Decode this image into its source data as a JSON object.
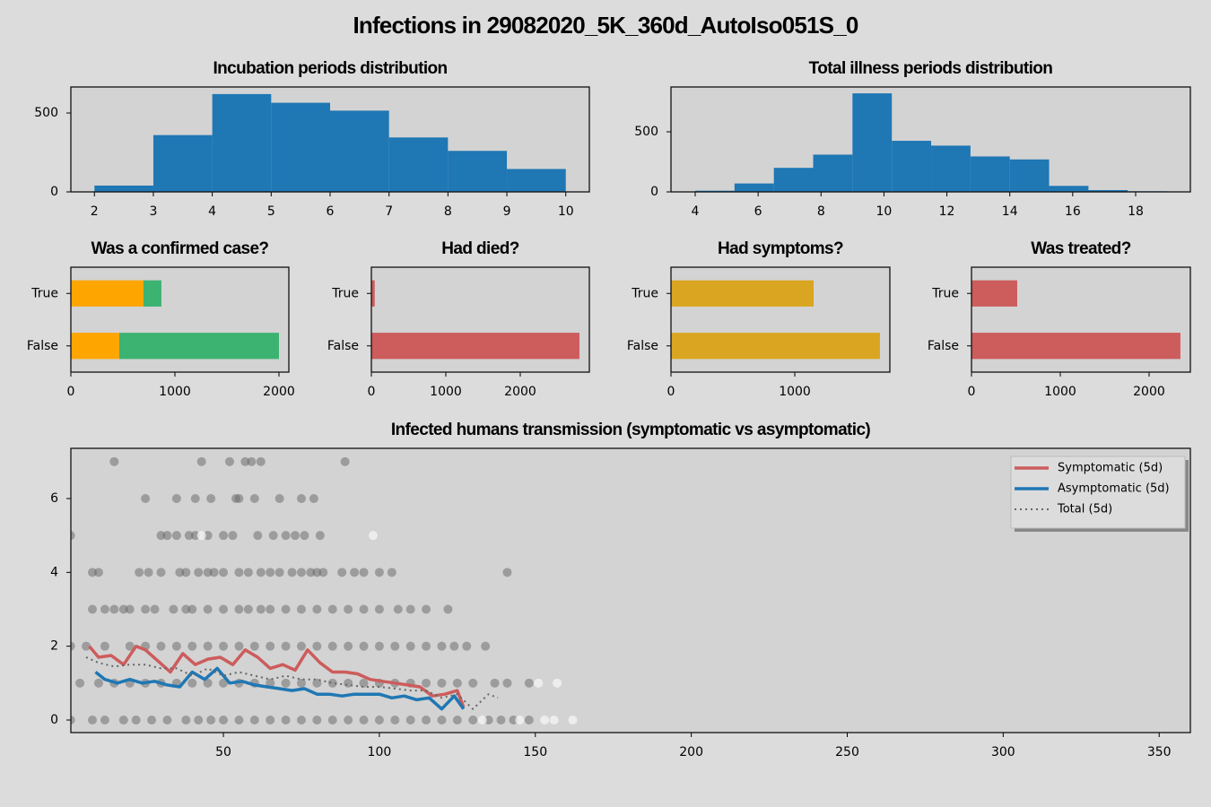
{
  "title": "Infections in 29082020_5K_360d_AutoIso051S_0",
  "chart_data": [
    {
      "type": "histogram",
      "title": "Incubation periods distribution",
      "color": "#1f77b4",
      "bins": [
        2,
        3,
        4,
        5,
        6,
        7,
        8,
        9,
        10
      ],
      "values": [
        40,
        360,
        620,
        565,
        515,
        345,
        260,
        145
      ],
      "xlim": [
        1.6,
        10.4
      ],
      "ylim": [
        0,
        665
      ],
      "xticks": [
        2,
        3,
        4,
        5,
        6,
        7,
        8,
        9,
        10
      ],
      "yticks": [
        0,
        500
      ]
    },
    {
      "type": "histogram",
      "title": "Total illness periods distribution",
      "color": "#1f77b4",
      "bins": [
        4,
        5.25,
        6.5,
        7.75,
        9,
        10.25,
        11.5,
        12.75,
        14,
        15.25,
        16.5,
        17.75,
        19
      ],
      "values": [
        10,
        70,
        200,
        310,
        820,
        425,
        385,
        295,
        270,
        50,
        15,
        5
      ],
      "xlim": [
        3.23,
        19.74
      ],
      "ylim": [
        0,
        873
      ],
      "xticks": [
        4,
        6,
        8,
        10,
        12,
        14,
        16,
        18
      ],
      "yticks": [
        0,
        500
      ]
    },
    {
      "type": "barh",
      "title": "Was a confirmed case?",
      "categories": [
        "False",
        "True"
      ],
      "series": [
        {
          "color": "#ffa500",
          "values": [
            465,
            698
          ]
        },
        {
          "color": "#3cb371",
          "values": [
            1535,
            172
          ]
        }
      ],
      "xlim": [
        0,
        2095
      ],
      "xticks": [
        0,
        1000,
        2000
      ]
    },
    {
      "type": "barh",
      "title": "Had died?",
      "categories": [
        "False",
        "True"
      ],
      "series": [
        {
          "color": "#cd5c5c",
          "values": [
            2795,
            45
          ]
        }
      ],
      "xlim": [
        0,
        2928
      ],
      "xticks": [
        0,
        1000,
        2000
      ]
    },
    {
      "type": "barh",
      "title": "Had symptoms?",
      "categories": [
        "False",
        "True"
      ],
      "series": [
        {
          "color": "#daa520",
          "values": [
            1688,
            1152
          ]
        }
      ],
      "xlim": [
        0,
        1768
      ],
      "xticks": [
        0,
        1000
      ]
    },
    {
      "type": "barh",
      "title": "Was treated?",
      "categories": [
        "False",
        "True"
      ],
      "series": [
        {
          "color": "#cd5c5c",
          "values": [
            2353,
            515
          ]
        }
      ],
      "xlim": [
        0,
        2465
      ],
      "xticks": [
        0,
        1000,
        2000
      ]
    },
    {
      "type": "scatter",
      "title": "Infected humans transmission (symptomatic vs asymptomatic)",
      "xlim": [
        1.1,
        360
      ],
      "ylim": [
        -0.34,
        7.36
      ],
      "xticks": [
        50,
        100,
        150,
        200,
        250,
        300,
        350
      ],
      "yticks": [
        0,
        2,
        4,
        6
      ],
      "legend": "upper right",
      "series": [
        {
          "style": "markers",
          "color": "#666666",
          "x": [
            15,
            43,
            52,
            57,
            59,
            62,
            89,
            25,
            35,
            41,
            46,
            54,
            55,
            60,
            68,
            75,
            79,
            1,
            30,
            32,
            35,
            39,
            41,
            45,
            50,
            53,
            61,
            66,
            70,
            73,
            76,
            81,
            8,
            10,
            23,
            26,
            30,
            36,
            38,
            42,
            45,
            47,
            50,
            55,
            58,
            62,
            65,
            68,
            72,
            75,
            78,
            80,
            82,
            88,
            92,
            95,
            100,
            104,
            141,
            8,
            12,
            15,
            18,
            20,
            25,
            28,
            34,
            38,
            40,
            45,
            50,
            55,
            58,
            62,
            65,
            70,
            75,
            80,
            85,
            90,
            95,
            100,
            106,
            110,
            115,
            122,
            1,
            6,
            12,
            20,
            25,
            30,
            35,
            40,
            45,
            50,
            55,
            60,
            65,
            70,
            75,
            80,
            85,
            90,
            95,
            100,
            105,
            110,
            115,
            120,
            124,
            128,
            134,
            4,
            10,
            15,
            20,
            25,
            30,
            35,
            40,
            45,
            50,
            55,
            60,
            65,
            70,
            75,
            80,
            85,
            90,
            95,
            100,
            105,
            110,
            115,
            120,
            125,
            130,
            137,
            141,
            148,
            1,
            8,
            12,
            18,
            22,
            27,
            32,
            38,
            42,
            46,
            50,
            55,
            60,
            65,
            70,
            75,
            80,
            85,
            90,
            95,
            100,
            105,
            110,
            115,
            120,
            125,
            130,
            135,
            139,
            143,
            148
          ],
          "values": [
            7,
            7,
            7,
            7,
            7,
            7,
            7,
            6,
            6,
            6,
            6,
            6,
            6,
            6,
            6,
            6,
            6,
            5,
            5,
            5,
            5,
            5,
            5,
            5,
            5,
            5,
            5,
            5,
            5,
            5,
            5,
            5,
            4,
            4,
            4,
            4,
            4,
            4,
            4,
            4,
            4,
            4,
            4,
            4,
            4,
            4,
            4,
            4,
            4,
            4,
            4,
            4,
            4,
            4,
            4,
            4,
            4,
            4,
            4,
            3,
            3,
            3,
            3,
            3,
            3,
            3,
            3,
            3,
            3,
            3,
            3,
            3,
            3,
            3,
            3,
            3,
            3,
            3,
            3,
            3,
            3,
            3,
            3,
            3,
            3,
            3,
            2,
            2,
            2,
            2,
            2,
            2,
            2,
            2,
            2,
            2,
            2,
            2,
            2,
            2,
            2,
            2,
            2,
            2,
            2,
            2,
            2,
            2,
            2,
            2,
            2,
            2,
            2,
            1,
            1,
            1,
            1,
            1,
            1,
            1,
            1,
            1,
            1,
            1,
            1,
            1,
            1,
            1,
            1,
            1,
            1,
            1,
            1,
            1,
            1,
            1,
            1,
            1,
            1,
            1,
            1,
            1,
            0,
            0,
            0,
            0,
            0,
            0,
            0,
            0,
            0,
            0,
            0,
            0,
            0,
            0,
            0,
            0,
            0,
            0,
            0,
            0,
            0,
            0,
            0,
            0,
            0,
            0,
            0,
            0,
            0,
            0,
            0
          ]
        },
        {
          "style": "markers",
          "color": "#f5f5f5",
          "x": [
            43,
            98,
            151,
            157,
            133,
            145,
            153,
            156,
            162
          ],
          "values": [
            5,
            5,
            1,
            1,
            0,
            0,
            0,
            0,
            0
          ]
        },
        {
          "style": "solid",
          "name": "Symptomatic (5d)",
          "color": "#cd5c5c",
          "x": [
            7,
            10,
            14,
            18,
            22,
            25,
            29,
            33,
            37,
            41,
            45,
            49,
            53,
            57,
            61,
            65,
            69,
            73,
            77,
            81,
            85,
            89,
            93,
            97,
            101,
            105,
            109,
            113,
            117,
            121,
            125,
            127
          ],
          "values": [
            2.0,
            1.7,
            1.75,
            1.5,
            2.0,
            1.9,
            1.6,
            1.3,
            1.8,
            1.5,
            1.65,
            1.7,
            1.5,
            1.9,
            1.7,
            1.4,
            1.5,
            1.35,
            1.9,
            1.55,
            1.3,
            1.3,
            1.25,
            1.1,
            1.05,
            1.0,
            0.95,
            0.9,
            0.65,
            0.7,
            0.8,
            0.35
          ]
        },
        {
          "style": "solid",
          "name": "Asymptomatic (5d)",
          "color": "#1f77b4",
          "x": [
            9,
            12,
            16,
            20,
            24,
            28,
            32,
            36,
            40,
            44,
            48,
            52,
            56,
            60,
            64,
            68,
            72,
            76,
            80,
            84,
            88,
            92,
            96,
            100,
            104,
            108,
            112,
            116,
            120,
            124,
            127
          ],
          "values": [
            1.3,
            1.1,
            1.0,
            1.1,
            1.0,
            1.05,
            0.95,
            0.9,
            1.3,
            1.1,
            1.4,
            1.0,
            1.05,
            0.95,
            0.9,
            0.85,
            0.8,
            0.85,
            0.7,
            0.7,
            0.65,
            0.7,
            0.7,
            0.7,
            0.6,
            0.65,
            0.55,
            0.6,
            0.3,
            0.65,
            0.3
          ]
        },
        {
          "style": "dotted",
          "name": "Total (5d)",
          "color": "#666666",
          "x": [
            6,
            10,
            15,
            20,
            25,
            30,
            35,
            40,
            45,
            50,
            55,
            60,
            65,
            70,
            75,
            80,
            85,
            90,
            95,
            100,
            105,
            110,
            115,
            120,
            125,
            130,
            135,
            138
          ],
          "values": [
            1.7,
            1.55,
            1.45,
            1.5,
            1.5,
            1.4,
            1.4,
            1.2,
            1.4,
            1.2,
            1.3,
            1.2,
            1.1,
            1.2,
            1.1,
            1.1,
            1.0,
            0.95,
            0.9,
            0.9,
            0.85,
            0.8,
            0.8,
            0.6,
            0.7,
            0.3,
            0.7,
            0.6
          ]
        }
      ]
    }
  ]
}
